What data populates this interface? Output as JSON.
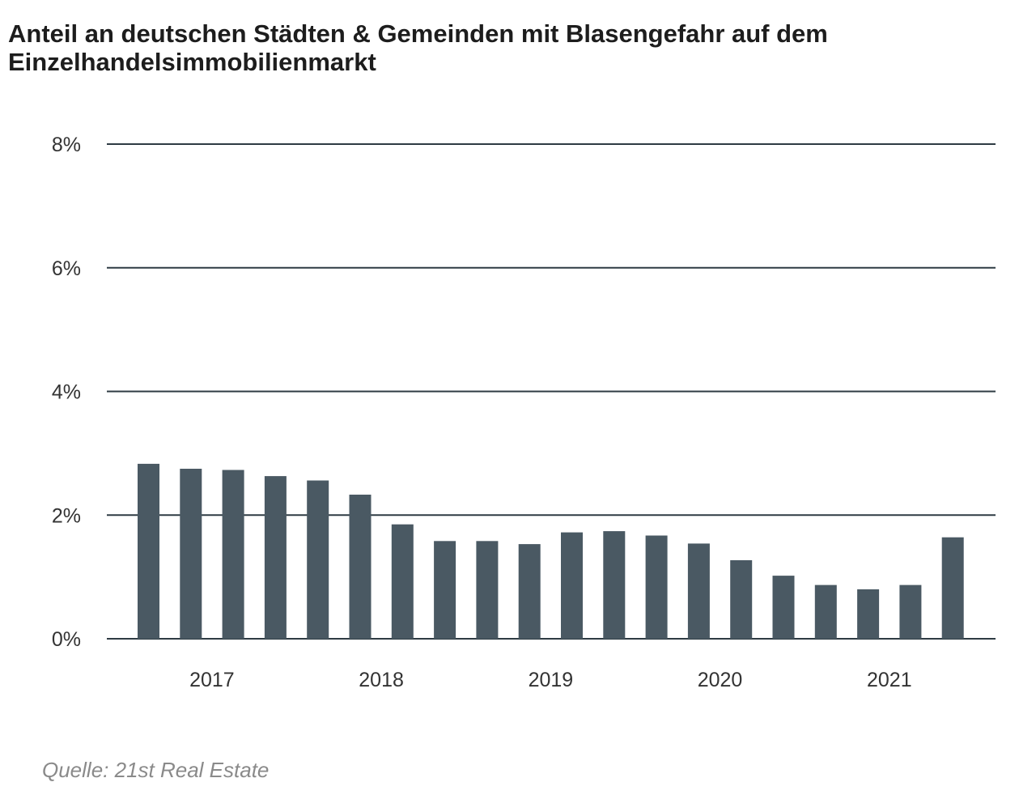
{
  "title": "Anteil an deutschen Städten & Gemeinden mit Blasengefahr auf dem Einzelhandelsimmobilienmarkt",
  "source": "Quelle: 21st Real Estate",
  "colors": {
    "bar": "#4a5963",
    "grid": "#2e3b43",
    "text": "#1d1d1d",
    "source": "#8a8a8a"
  },
  "chart_data": {
    "type": "bar",
    "title": "Anteil an deutschen Städten & Gemeinden mit Blasengefahr auf dem Einzelhandelsimmobilienmarkt",
    "xlabel": "",
    "ylabel": "",
    "ylim": [
      0,
      8
    ],
    "yticks": [
      0,
      2,
      4,
      6,
      8
    ],
    "ytick_labels": [
      "0%",
      "2%",
      "4%",
      "6%",
      "8%"
    ],
    "xtick_labels": [
      {
        "label": "2017",
        "after_bar": 2
      },
      {
        "label": "2018",
        "after_bar": 6
      },
      {
        "label": "2019",
        "after_bar": 10
      },
      {
        "label": "2020",
        "after_bar": 14
      },
      {
        "label": "2021",
        "after_bar": 18
      }
    ],
    "values": [
      2.83,
      2.75,
      2.73,
      2.63,
      2.56,
      2.33,
      1.85,
      1.58,
      1.58,
      1.53,
      1.72,
      1.74,
      1.67,
      1.54,
      1.27,
      1.02,
      0.87,
      0.8,
      0.87,
      1.64
    ],
    "grid": true,
    "legend": "none"
  }
}
